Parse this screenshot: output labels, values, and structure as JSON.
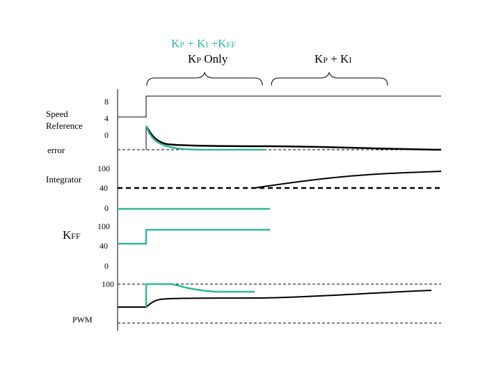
{
  "header": {
    "teal_formula": [
      "K",
      "P",
      " + K",
      "I",
      " +K",
      "FF"
    ],
    "kp_only": [
      "K",
      "P",
      " Only"
    ],
    "right_formula": [
      "K",
      "P",
      " + K",
      "I"
    ]
  },
  "signals": {
    "speed_reference": {
      "label_line1": "Speed",
      "label_line2": "Reference",
      "ticks": [
        "8",
        "4",
        "0"
      ]
    },
    "error": {
      "label": "error"
    },
    "integrator": {
      "label": "Integrator",
      "ticks": [
        "100",
        "40"
      ]
    },
    "kff": {
      "label": [
        "K",
        "FF"
      ],
      "ticks": [
        "0",
        "100",
        "40"
      ]
    },
    "pwm": {
      "label": "PWM",
      "ticks": [
        "0",
        "100"
      ]
    }
  },
  "colors": {
    "teal": "#2db89a",
    "black": "#000000"
  }
}
